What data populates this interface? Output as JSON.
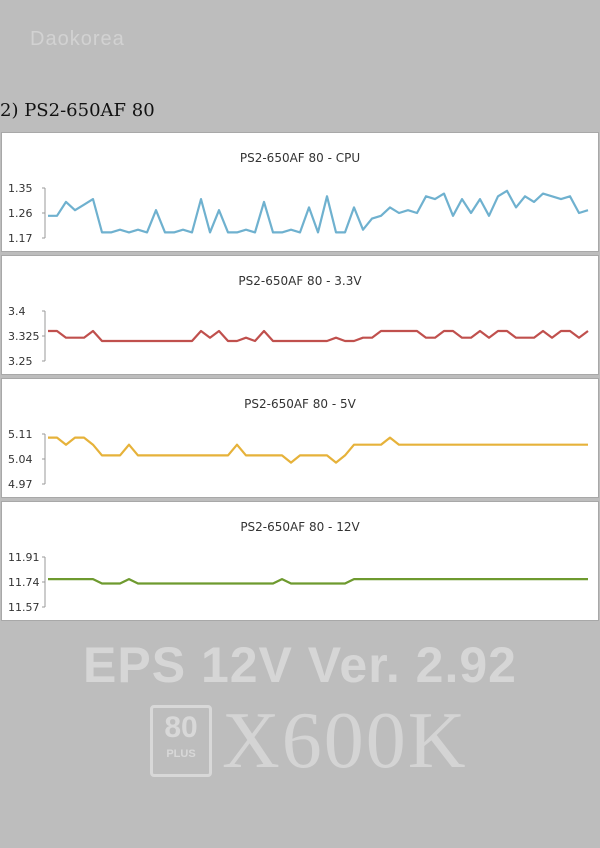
{
  "watermark_top": "Daokorea",
  "heading": "2) PS2-650AF 80",
  "bottom_brand": {
    "eps": "EPS 12V Ver. 2.92",
    "plus_number": "80",
    "plus_word": "PLUS",
    "model": "X600K"
  },
  "chart_data": [
    {
      "type": "line",
      "title": "PS2-650AF 80 - CPU",
      "color": "#6fb1cf",
      "yticks": [
        "1.35",
        "1.26",
        "1.17"
      ],
      "ylim": [
        1.17,
        1.35
      ],
      "values": [
        1.25,
        1.25,
        1.3,
        1.27,
        1.29,
        1.31,
        1.19,
        1.19,
        1.2,
        1.19,
        1.2,
        1.19,
        1.27,
        1.19,
        1.19,
        1.2,
        1.19,
        1.31,
        1.19,
        1.27,
        1.19,
        1.19,
        1.2,
        1.19,
        1.3,
        1.19,
        1.19,
        1.2,
        1.19,
        1.28,
        1.19,
        1.32,
        1.19,
        1.19,
        1.28,
        1.2,
        1.24,
        1.25,
        1.28,
        1.26,
        1.27,
        1.26,
        1.32,
        1.31,
        1.33,
        1.25,
        1.31,
        1.26,
        1.31,
        1.25,
        1.32,
        1.34,
        1.28,
        1.32,
        1.3,
        1.33,
        1.32,
        1.31,
        1.32,
        1.26,
        1.27
      ]
    },
    {
      "type": "line",
      "title": "PS2-650AF 80 - 3.3V",
      "color": "#c0504d",
      "yticks": [
        "3.4",
        "3.325",
        "3.25"
      ],
      "ylim": [
        3.25,
        3.4
      ],
      "values": [
        3.34,
        3.34,
        3.32,
        3.32,
        3.32,
        3.34,
        3.31,
        3.31,
        3.31,
        3.31,
        3.31,
        3.31,
        3.31,
        3.31,
        3.31,
        3.31,
        3.31,
        3.34,
        3.32,
        3.34,
        3.31,
        3.31,
        3.32,
        3.31,
        3.34,
        3.31,
        3.31,
        3.31,
        3.31,
        3.31,
        3.31,
        3.31,
        3.32,
        3.31,
        3.31,
        3.32,
        3.32,
        3.34,
        3.34,
        3.34,
        3.34,
        3.34,
        3.32,
        3.32,
        3.34,
        3.34,
        3.32,
        3.32,
        3.34,
        3.32,
        3.34,
        3.34,
        3.32,
        3.32,
        3.32,
        3.34,
        3.32,
        3.34,
        3.34,
        3.32,
        3.34
      ]
    },
    {
      "type": "line",
      "title": "PS2-650AF 80 - 5V",
      "color": "#e6b23a",
      "yticks": [
        "5.11",
        "5.04",
        "4.97"
      ],
      "ylim": [
        4.97,
        5.11
      ],
      "values": [
        5.1,
        5.1,
        5.08,
        5.1,
        5.1,
        5.08,
        5.05,
        5.05,
        5.05,
        5.08,
        5.05,
        5.05,
        5.05,
        5.05,
        5.05,
        5.05,
        5.05,
        5.05,
        5.05,
        5.05,
        5.05,
        5.08,
        5.05,
        5.05,
        5.05,
        5.05,
        5.05,
        5.03,
        5.05,
        5.05,
        5.05,
        5.05,
        5.03,
        5.05,
        5.08,
        5.08,
        5.08,
        5.08,
        5.1,
        5.08,
        5.08,
        5.08,
        5.08,
        5.08,
        5.08,
        5.08,
        5.08,
        5.08,
        5.08,
        5.08,
        5.08,
        5.08,
        5.08,
        5.08,
        5.08,
        5.08,
        5.08,
        5.08,
        5.08,
        5.08,
        5.08
      ]
    },
    {
      "type": "line",
      "title": "PS2-650AF 80 - 12V",
      "color": "#6e9a2f",
      "yticks": [
        "11.91",
        "11.74",
        "11.57"
      ],
      "ylim": [
        11.57,
        11.91
      ],
      "values": [
        11.76,
        11.76,
        11.76,
        11.76,
        11.76,
        11.76,
        11.73,
        11.73,
        11.73,
        11.76,
        11.73,
        11.73,
        11.73,
        11.73,
        11.73,
        11.73,
        11.73,
        11.73,
        11.73,
        11.73,
        11.73,
        11.73,
        11.73,
        11.73,
        11.73,
        11.73,
        11.76,
        11.73,
        11.73,
        11.73,
        11.73,
        11.73,
        11.73,
        11.73,
        11.76,
        11.76,
        11.76,
        11.76,
        11.76,
        11.76,
        11.76,
        11.76,
        11.76,
        11.76,
        11.76,
        11.76,
        11.76,
        11.76,
        11.76,
        11.76,
        11.76,
        11.76,
        11.76,
        11.76,
        11.76,
        11.76,
        11.76,
        11.76,
        11.76,
        11.76,
        11.76
      ]
    }
  ]
}
